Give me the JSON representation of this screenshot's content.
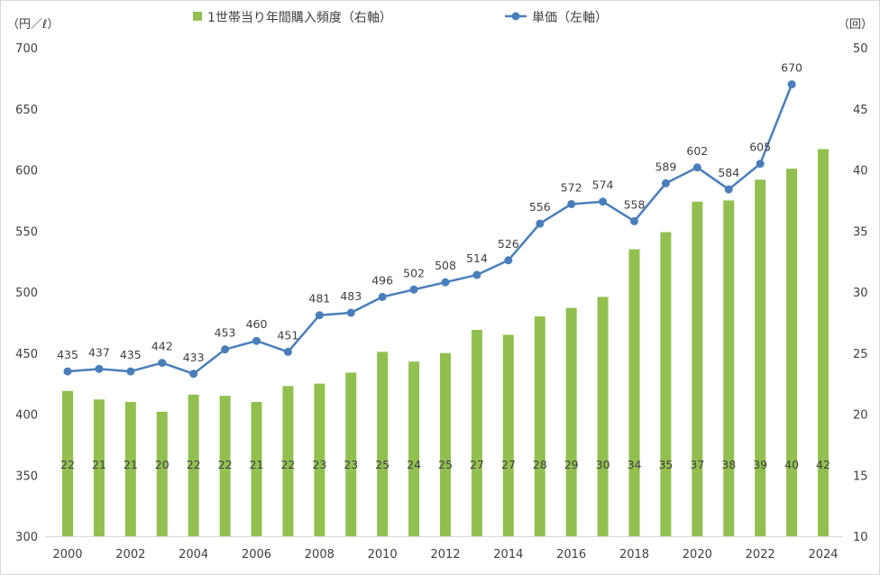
{
  "chart_data": {
    "type": "bar+line",
    "x_ticks": [
      "2000",
      "2002",
      "2004",
      "2006",
      "2008",
      "2010",
      "2012",
      "2014",
      "2016",
      "2018",
      "2020",
      "2022",
      "2024"
    ],
    "x_years": [
      2000,
      2001,
      2002,
      2003,
      2004,
      2005,
      2006,
      2007,
      2008,
      2009,
      2010,
      2011,
      2012,
      2013,
      2014,
      2015,
      2016,
      2017,
      2018,
      2019,
      2020,
      2021,
      2022,
      2023,
      2024
    ],
    "left_axis": {
      "unit": "（円／ℓ）",
      "range": [
        300,
        700
      ],
      "ticks": [
        "300",
        "350",
        "400",
        "450",
        "500",
        "550",
        "600",
        "650",
        "700"
      ]
    },
    "right_axis": {
      "unit": "（回）",
      "range": [
        10,
        50
      ],
      "ticks": [
        "10",
        "15",
        "20",
        "25",
        "30",
        "35",
        "40",
        "45",
        "50"
      ]
    },
    "series": [
      {
        "name": "1世帯当り年間購入頻度（右軸）",
        "kind": "bar",
        "axis": "right",
        "color": "#92c050",
        "x": [
          2000,
          2001,
          2002,
          2003,
          2004,
          2005,
          2006,
          2007,
          2008,
          2009,
          2010,
          2011,
          2012,
          2013,
          2014,
          2015,
          2016,
          2017,
          2018,
          2019,
          2020,
          2021,
          2022,
          2023,
          2024
        ],
        "values": [
          21.9,
          21.2,
          21.0,
          20.2,
          21.6,
          21.5,
          21.0,
          22.3,
          22.5,
          23.4,
          25.1,
          24.3,
          25.0,
          26.9,
          26.5,
          28.0,
          28.7,
          29.6,
          33.5,
          34.9,
          37.4,
          37.5,
          39.2,
          40.1,
          41.7
        ],
        "labels": [
          "22",
          "21",
          "21",
          "20",
          "22",
          "22",
          "21",
          "22",
          "23",
          "23",
          "25",
          "24",
          "25",
          "27",
          "27",
          "28",
          "29",
          "30",
          "34",
          "35",
          "37",
          "38",
          "39",
          "40",
          "42"
        ]
      },
      {
        "name": "単価（左軸）",
        "kind": "line",
        "axis": "left",
        "color": "#4a7ebb",
        "x": [
          2000,
          2001,
          2002,
          2003,
          2004,
          2005,
          2006,
          2007,
          2008,
          2009,
          2010,
          2011,
          2012,
          2013,
          2014,
          2015,
          2016,
          2017,
          2018,
          2019,
          2020,
          2021,
          2022,
          2023
        ],
        "values": [
          435,
          437,
          435,
          442,
          433,
          453,
          460,
          451,
          481,
          483,
          496,
          502,
          508,
          514,
          526,
          556,
          572,
          574,
          558,
          589,
          602,
          584,
          605,
          670
        ],
        "labels": [
          "435",
          "437",
          "435",
          "442",
          "433",
          "453",
          "460",
          "451",
          "481",
          "483",
          "496",
          "502",
          "508",
          "514",
          "526",
          "556",
          "572",
          "574",
          "558",
          "589",
          "602",
          "584",
          "605",
          "670"
        ]
      }
    ],
    "grid": false,
    "legend_position": "top"
  }
}
